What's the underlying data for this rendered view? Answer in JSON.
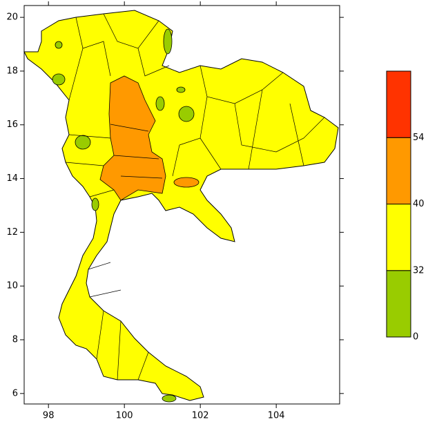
{
  "chart_data": {
    "type": "contour-map",
    "xlim": [
      97.36,
      105.67
    ],
    "ylim": [
      5.61,
      20.44
    ],
    "xticks": [
      98,
      100,
      102,
      104
    ],
    "yticks": [
      6,
      8,
      10,
      12,
      14,
      16,
      18,
      20
    ],
    "colorbar": {
      "levels": [
        0,
        32,
        40,
        54
      ],
      "colors": [
        "#99cc00",
        "#ffff00",
        "#ff9900",
        "#ff3300"
      ]
    }
  }
}
